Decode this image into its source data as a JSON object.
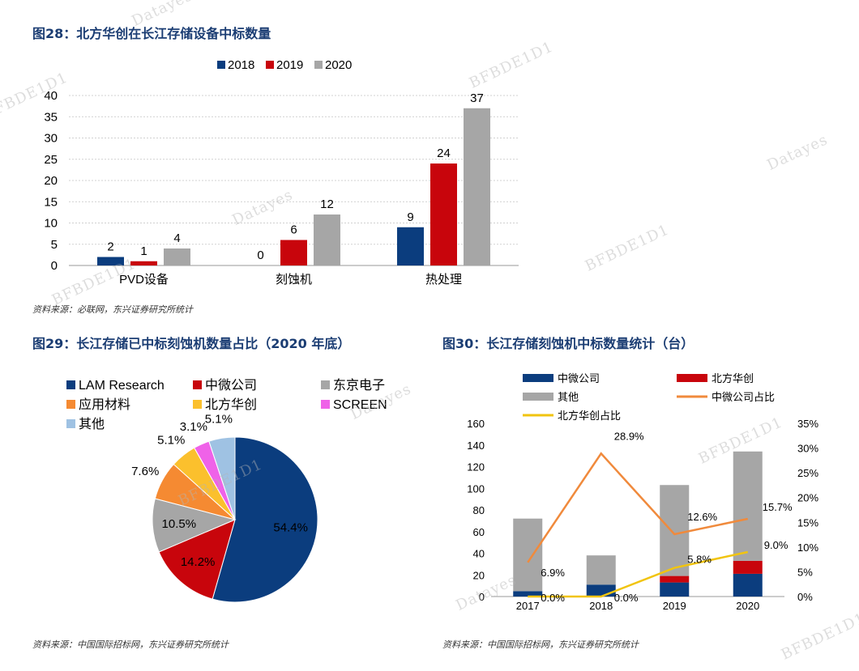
{
  "figure28": {
    "title": "图28：北方华创在长江存储设备中标数量",
    "source": "资料来源：必联网，东兴证券研究所统计"
  },
  "figure29": {
    "title": "图29：长江存储已中标刻蚀机数量占比（2020 年底）",
    "source": "资料来源：中国国际招标网，东兴证券研究所统计"
  },
  "figure30": {
    "title": "图30：长江存储刻蚀机中标数量统计（台）",
    "source": "资料来源：中国国际招标网，东兴证券研究所统计"
  },
  "watermarks": {
    "datayes": "Datayes",
    "code": "BFBDE1D1"
  },
  "chart_data": [
    {
      "type": "bar",
      "categories": [
        "PVD设备",
        "刻蚀机",
        "热处理"
      ],
      "series": [
        {
          "name": "2018",
          "values": [
            2,
            0,
            9
          ],
          "color": "#0b3d7e"
        },
        {
          "name": "2019",
          "values": [
            1,
            6,
            24
          ],
          "color": "#c8050c"
        },
        {
          "name": "2020",
          "values": [
            4,
            12,
            37
          ],
          "color": "#a6a6a6"
        }
      ],
      "ylim": [
        0,
        40
      ],
      "yticks": [
        "0",
        "5",
        "10",
        "15",
        "20",
        "25",
        "30",
        "35",
        "40"
      ],
      "grid": true,
      "legend": "top"
    },
    {
      "type": "pie",
      "slices": [
        {
          "name": "LAM Research",
          "value": 54.4,
          "label": "54.4%",
          "color": "#0b3d7e"
        },
        {
          "name": "中微公司",
          "value": 14.2,
          "label": "14.2%",
          "color": "#c8050c"
        },
        {
          "name": "东京电子",
          "value": 10.5,
          "label": "10.5%",
          "color": "#a6a6a6"
        },
        {
          "name": "应用材料",
          "value": 7.6,
          "label": "7.6%",
          "color": "#f58a32"
        },
        {
          "name": "北方华创",
          "value": 5.1,
          "label": "5.1%",
          "color": "#fbc02d"
        },
        {
          "name": "SCREEN",
          "value": 3.1,
          "label": "3.1%",
          "color": "#ef62e8"
        },
        {
          "name": "其他",
          "value": 5.1,
          "label": "5.1%",
          "color": "#9fc2e3"
        }
      ],
      "legend": "top"
    },
    {
      "type": "bar",
      "stacked": true,
      "categories": [
        "2017",
        "2018",
        "2019",
        "2020"
      ],
      "bar_series": [
        {
          "name": "中微公司",
          "values": [
            5,
            11,
            13,
            21
          ],
          "color": "#0b3d7e"
        },
        {
          "name": "北方华创",
          "values": [
            0,
            0,
            6,
            12
          ],
          "color": "#c8050c"
        },
        {
          "name": "其他",
          "values": [
            67,
            27,
            84,
            101
          ],
          "color": "#a6a6a6"
        }
      ],
      "line_series": [
        {
          "name": "中微公司占比",
          "values": [
            6.9,
            28.9,
            12.6,
            15.7
          ],
          "labels": [
            "6.9%",
            "28.9%",
            "12.6%",
            "15.7%"
          ],
          "color": "#f08a3c"
        },
        {
          "name": "北方华创占比",
          "values": [
            0.0,
            0.0,
            5.8,
            9.0
          ],
          "labels": [
            "0.0%",
            "0.0%",
            "5.8%",
            "9.0%"
          ],
          "color": "#f1c40f"
        }
      ],
      "ylim": [
        0,
        160
      ],
      "yticks": [
        "0",
        "20",
        "40",
        "60",
        "80",
        "100",
        "120",
        "140",
        "160"
      ],
      "y2lim": [
        0,
        35
      ],
      "y2ticks": [
        "0%",
        "5%",
        "10%",
        "15%",
        "20%",
        "25%",
        "30%",
        "35%"
      ],
      "legend": "top"
    }
  ]
}
